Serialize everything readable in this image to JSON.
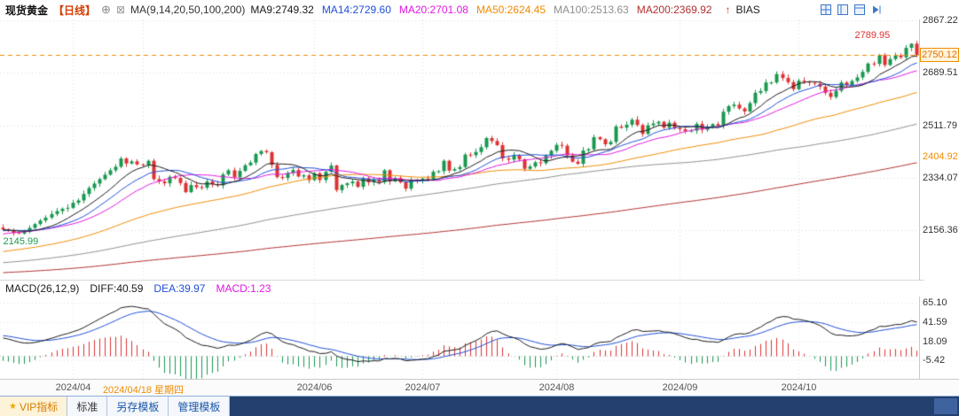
{
  "header": {
    "symbol": "现货黄金",
    "period": "【日线】",
    "icons": {
      "add": "⊕",
      "ma_toggle": "⊠",
      "bias_arrow": "↑"
    },
    "ma_group_label": "MA(9,14,20,50,100,200)",
    "bias_label": "BIAS"
  },
  "layout_icons": [
    "multi-chart-grid-icon",
    "split-vertical-icon",
    "split-horizontal-icon",
    "scroll-to-latest-icon"
  ],
  "macd_header": {
    "title": "MACD(26,12,9)",
    "diff": "DIFF:40.59",
    "dea": "DEA:39.97",
    "macd": "MACD:1.23"
  },
  "price_axis_labels": [
    {
      "text": "2867.22",
      "value": 2867.22,
      "kind": "grid"
    },
    {
      "text": "2750.12",
      "value": 2750.12,
      "kind": "tag"
    },
    {
      "text": "2689.51",
      "value": 2689.51,
      "kind": "grid"
    },
    {
      "text": "2511.79",
      "value": 2511.79,
      "kind": "grid"
    },
    {
      "text": "2404.92",
      "value": 2404.92,
      "kind": "alert"
    },
    {
      "text": "2334.07",
      "value": 2334.07,
      "kind": "grid"
    },
    {
      "text": "2156.36",
      "value": 2156.36,
      "kind": "grid"
    }
  ],
  "footer": {
    "vip_icon": "★",
    "tabs": [
      {
        "label": "VIP指标"
      },
      {
        "label": "标准"
      },
      {
        "label": "另存模板"
      },
      {
        "label": "管理模板"
      }
    ]
  },
  "chart_data": {
    "type": "candlestick",
    "title": "现货黄金【日线】",
    "x_ticks": [
      {
        "index": 13,
        "label": "2024/04"
      },
      {
        "index": 26,
        "label": "2024/04/18 星期四",
        "highlight": true
      },
      {
        "index": 58,
        "label": "2024/06"
      },
      {
        "index": 78,
        "label": "2024/07"
      },
      {
        "index": 103,
        "label": "2024/08"
      },
      {
        "index": 126,
        "label": "2024/09"
      },
      {
        "index": 148,
        "label": "2024/10"
      }
    ],
    "closes": [
      2160,
      2155,
      2148,
      2146,
      2152,
      2165,
      2178,
      2190,
      2200,
      2212,
      2222,
      2230,
      2233,
      2250,
      2258,
      2280,
      2300,
      2315,
      2330,
      2345,
      2360,
      2372,
      2400,
      2383,
      2390,
      2380,
      2378,
      2392,
      2330,
      2322,
      2316,
      2338,
      2334,
      2317,
      2286,
      2310,
      2303,
      2301,
      2322,
      2313,
      2309,
      2346,
      2360,
      2336,
      2358,
      2377,
      2386,
      2415,
      2425,
      2421,
      2378,
      2337,
      2334,
      2351,
      2361,
      2339,
      2343,
      2327,
      2350,
      2327,
      2355,
      2376,
      2293,
      2310,
      2316,
      2322,
      2304,
      2333,
      2319,
      2329,
      2320,
      2360,
      2322,
      2334,
      2319,
      2298,
      2327,
      2326,
      2332,
      2330,
      2355,
      2357,
      2392,
      2359,
      2364,
      2371,
      2413,
      2411,
      2422,
      2438,
      2469,
      2459,
      2445,
      2400,
      2396,
      2410,
      2397,
      2365,
      2373,
      2387,
      2384,
      2410,
      2426,
      2446,
      2443,
      2410,
      2389,
      2382,
      2427,
      2431,
      2472,
      2465,
      2448,
      2456,
      2508,
      2504,
      2514,
      2531,
      2513,
      2483,
      2512,
      2518,
      2524,
      2504,
      2521,
      2503,
      2499,
      2493,
      2494,
      2517,
      2497,
      2506,
      2516,
      2511,
      2558,
      2577,
      2582,
      2569,
      2559,
      2587,
      2622,
      2628,
      2657,
      2657,
      2685,
      2672,
      2658,
      2634,
      2663,
      2659,
      2656,
      2653,
      2643,
      2622,
      2608,
      2629,
      2657,
      2648,
      2662,
      2674,
      2693,
      2721,
      2720,
      2749,
      2716,
      2736,
      2748,
      2742,
      2774,
      2788,
      2750.12
    ],
    "period_high": 2789.95,
    "period_low": 2145.99,
    "last_price": 2750.12,
    "last_price_color": "#f08c00",
    "up_color": "#1a9850",
    "down_color": "#dd3333",
    "price_axis": {
      "ylim": [
        1990,
        2870
      ],
      "gridlines": [
        2867.22,
        2689.51,
        2511.79,
        2334.07,
        2156.36
      ]
    },
    "ma_series": [
      {
        "name": "MA9",
        "window": 9,
        "label": "MA9:2749.32",
        "color": "#1a1a1a"
      },
      {
        "name": "MA14",
        "window": 14,
        "label": "MA14:2729.60",
        "color": "#1f4fd8"
      },
      {
        "name": "MA20",
        "window": 20,
        "label": "MA20:2701.08",
        "color": "#e018e0"
      },
      {
        "name": "MA50",
        "window": 50,
        "label": "MA50:2624.45",
        "color": "#f08c00"
      },
      {
        "name": "MA100",
        "window": 100,
        "label": "MA100:2513.63",
        "color": "#8f8f8f"
      },
      {
        "name": "MA200",
        "window": 200,
        "label": "MA200:2369.92",
        "color": "#b03030"
      }
    ],
    "macd": {
      "params": "(26,12,9)",
      "diff": 40.59,
      "dea": 39.97,
      "bar": 1.23,
      "ylim": [
        -28,
        74
      ],
      "axis_values": [
        65.1,
        41.59,
        18.09,
        -5.42
      ],
      "diff_color": "#1a1a1a",
      "dea_color": "#1f4fd8",
      "macd_color": "#e018e0",
      "bar_up_color": "#dd3333",
      "bar_down_color": "#1a9850"
    }
  }
}
